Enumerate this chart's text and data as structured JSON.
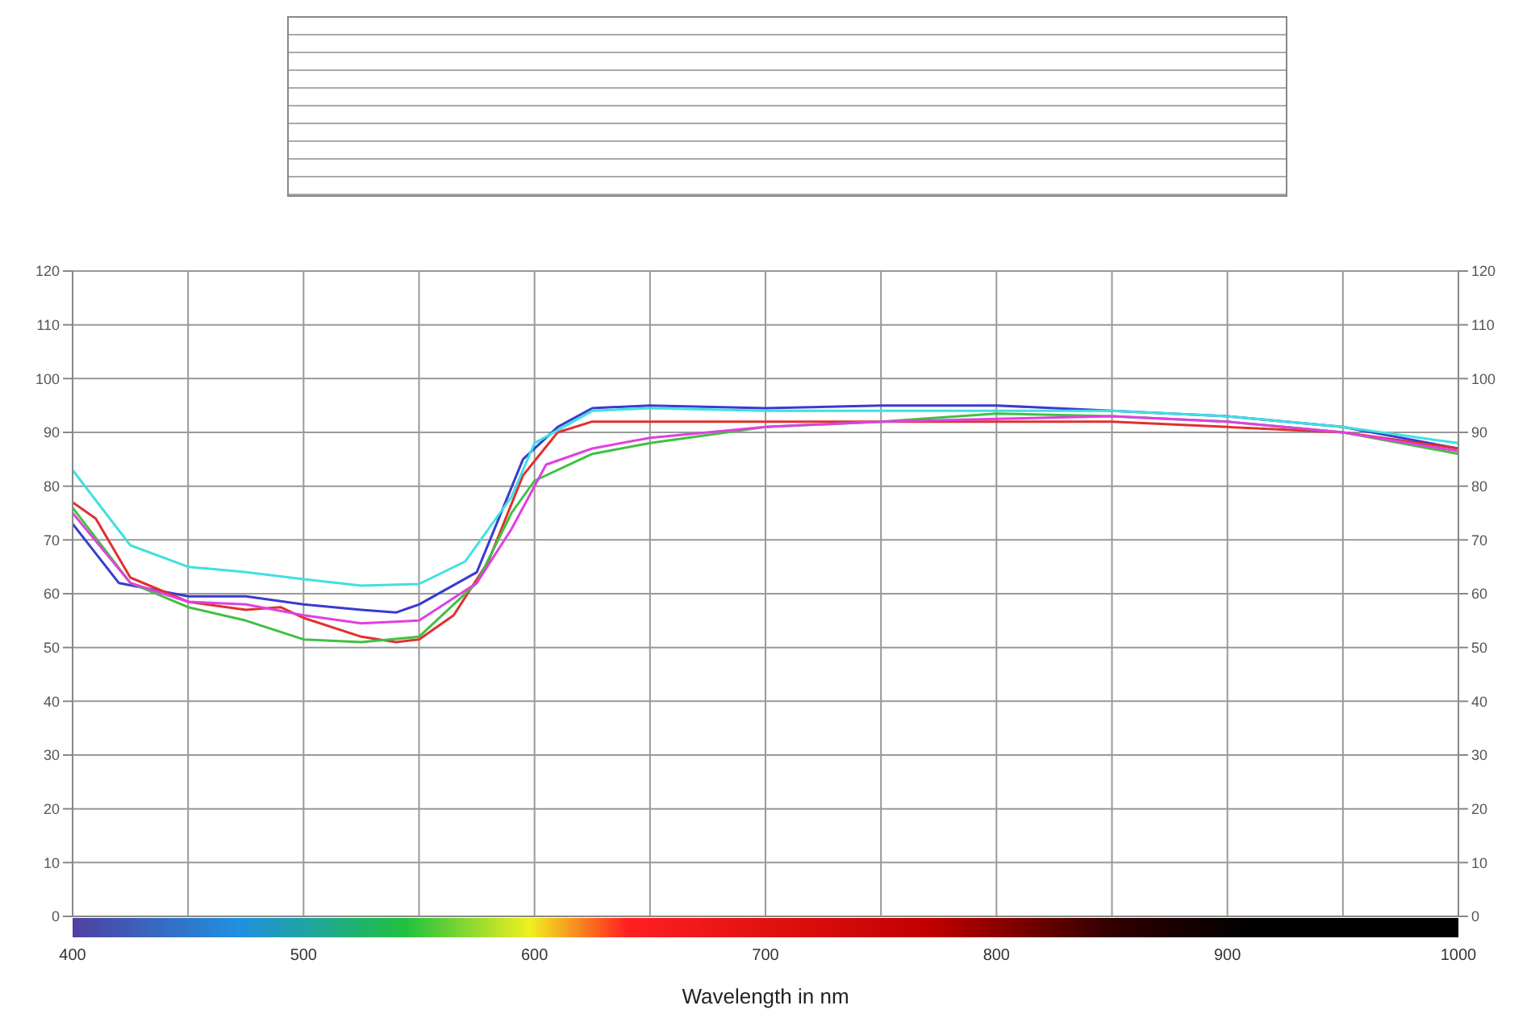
{
  "chart_data": {
    "type": "line",
    "xlabel": "Wavelength in nm",
    "xlim": [
      400,
      1000
    ],
    "ylim": [
      0,
      120
    ],
    "xticks": [
      400,
      {
        "value": 450,
        "label": null
      },
      500,
      {
        "value": 550,
        "label": null
      },
      600,
      {
        "value": 650,
        "label": null
      },
      700,
      {
        "value": 750,
        "label": null
      },
      800,
      {
        "value": 850,
        "label": null
      },
      900,
      {
        "value": 950,
        "label": null
      },
      1000
    ],
    "yticks": [
      0,
      10,
      20,
      30,
      40,
      50,
      60,
      70,
      80,
      90,
      100,
      110,
      120
    ],
    "y2lim": [
      0,
      120
    ],
    "y2ticks": [
      0,
      10,
      20,
      30,
      40,
      50,
      60,
      70,
      80,
      90,
      100,
      110,
      120
    ],
    "grid": true,
    "legend": false,
    "marker": "none",
    "line_style": "solid",
    "series": [
      {
        "color": "#3a3ad0",
        "x": [
          400,
          420,
          450,
          475,
          500,
          525,
          540,
          550,
          575,
          595,
          610,
          625,
          650,
          700,
          750,
          800,
          850,
          900,
          950,
          1000
        ],
        "values": [
          73,
          62,
          59.5,
          59.5,
          58,
          57,
          56.5,
          58,
          64,
          85,
          91,
          94.5,
          95,
          94.5,
          95,
          95,
          94,
          93,
          91,
          87
        ]
      },
      {
        "color": "#e03030",
        "x": [
          400,
          410,
          425,
          450,
          475,
          490,
          500,
          525,
          540,
          550,
          565,
          580,
          595,
          610,
          625,
          650,
          700,
          750,
          800,
          850,
          900,
          950,
          1000
        ],
        "values": [
          77,
          74,
          63,
          58.5,
          57,
          57.5,
          55.5,
          52,
          51,
          51.5,
          56,
          66,
          82,
          90,
          92,
          92,
          92,
          92,
          92,
          92,
          91,
          90,
          87
        ]
      },
      {
        "color": "#40c040",
        "x": [
          400,
          425,
          450,
          475,
          500,
          525,
          550,
          575,
          590,
          600,
          625,
          650,
          700,
          750,
          800,
          850,
          900,
          950,
          1000
        ],
        "values": [
          76,
          62,
          57.5,
          55,
          51.5,
          51,
          52,
          62,
          75,
          81,
          86,
          88,
          91,
          92,
          93.5,
          93,
          92,
          90,
          86
        ]
      },
      {
        "color": "#e040e0",
        "x": [
          400,
          425,
          450,
          475,
          500,
          525,
          550,
          575,
          590,
          605,
          625,
          650,
          700,
          750,
          800,
          850,
          900,
          950,
          1000
        ],
        "values": [
          75,
          62,
          58.5,
          58,
          56,
          54.5,
          55,
          62,
          72,
          84,
          87,
          89,
          91,
          92,
          92.5,
          93,
          92,
          90,
          86.5
        ]
      },
      {
        "color": "#40e0e0",
        "x": [
          400,
          425,
          450,
          475,
          500,
          525,
          550,
          570,
          590,
          600,
          625,
          650,
          700,
          750,
          800,
          850,
          900,
          950,
          1000
        ],
        "values": [
          83,
          69,
          65,
          64,
          62.7,
          61.5,
          61.8,
          66,
          78,
          88,
          94,
          94.5,
          94,
          94,
          94,
          94,
          93,
          91,
          88
        ]
      }
    ]
  }
}
